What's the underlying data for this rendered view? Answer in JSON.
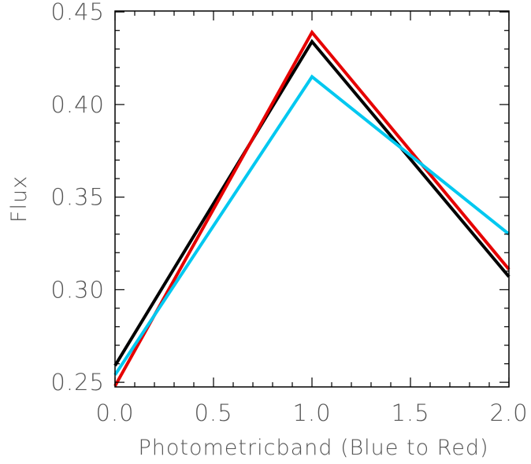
{
  "chart_data": {
    "type": "line",
    "title": "",
    "xlabel": "Photometricband (Blue to Red)",
    "ylabel": "Flux",
    "xlim": [
      0.0,
      2.0
    ],
    "ylim": [
      0.2475,
      0.4505
    ],
    "xticks": [
      0.0,
      0.5,
      1.0,
      1.5,
      2.0
    ],
    "xtick_labels": [
      "0.0",
      "0.5",
      "1.0",
      "1.5",
      "2.0"
    ],
    "yticks": [
      0.25,
      0.3,
      0.35,
      0.4,
      0.45
    ],
    "ytick_labels": [
      "0.25",
      "0.30",
      "0.35",
      "0.40",
      "0.45"
    ],
    "x_minor_step": 0.1,
    "y_minor_step": 0.01,
    "grid": false,
    "legend": "none",
    "series": [
      {
        "color": "#000000",
        "x": [
          0.0,
          1.0,
          2.0
        ],
        "y": [
          0.259,
          0.434,
          0.307
        ]
      },
      {
        "color": "#e60000",
        "x": [
          0.0,
          1.0,
          2.0
        ],
        "y": [
          0.248,
          0.439,
          0.311
        ]
      },
      {
        "color": "#00c8f0",
        "x": [
          0.0,
          1.0,
          2.0
        ],
        "y": [
          0.254,
          0.415,
          0.33
        ]
      }
    ]
  }
}
